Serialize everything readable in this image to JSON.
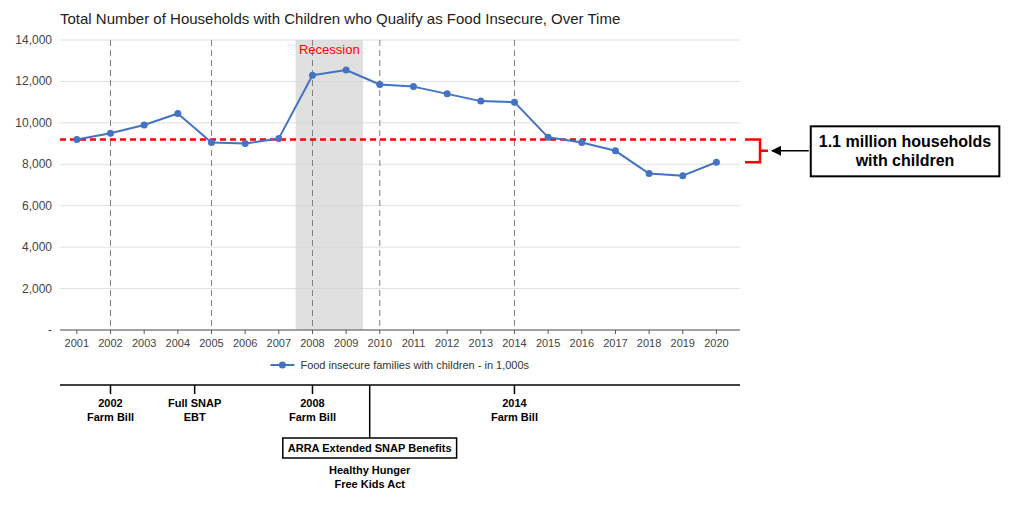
{
  "chart_data": {
    "type": "line",
    "title": "Total Number of Households with Children who Qualify as Food Insecure, Over Time",
    "x": [
      2001,
      2002,
      2003,
      2004,
      2005,
      2006,
      2007,
      2008,
      2009,
      2010,
      2011,
      2012,
      2013,
      2014,
      2015,
      2016,
      2017,
      2018,
      2019,
      2020
    ],
    "series": [
      {
        "name": "Food insecure families with children - in 1,000s",
        "color": "#4472C4",
        "marker": "circle",
        "values": [
          9200,
          9500,
          9900,
          10450,
          9050,
          9000,
          9250,
          12300,
          12550,
          11850,
          11750,
          11400,
          11050,
          11000,
          9300,
          9050,
          8650,
          7550,
          7450,
          8100
        ]
      }
    ],
    "xlim": [
      2000.5,
      2020.7
    ],
    "xticks": [
      2001,
      2002,
      2003,
      2004,
      2005,
      2006,
      2007,
      2008,
      2009,
      2010,
      2011,
      2012,
      2013,
      2014,
      2015,
      2016,
      2017,
      2018,
      2019,
      2020
    ],
    "ylim": [
      0,
      14000
    ],
    "yticks": [
      {
        "value": 0,
        "label": "-"
      },
      {
        "value": 2000,
        "label": "2,000"
      },
      {
        "value": 4000,
        "label": "4,000"
      },
      {
        "value": 6000,
        "label": "6,000"
      },
      {
        "value": 8000,
        "label": "8,000"
      },
      {
        "value": 10000,
        "label": "10,000"
      },
      {
        "value": 12000,
        "label": "12,000"
      },
      {
        "value": 14000,
        "label": "14,000"
      }
    ],
    "grid": true,
    "legend": "bottom",
    "reference_lines": [
      {
        "value": 9200,
        "color": "#FF0000",
        "line_style": "dashed"
      }
    ],
    "vlines": {
      "values": [
        2002,
        2005,
        2008,
        2010,
        2014
      ],
      "color": "#808080",
      "line_style": "dashed"
    },
    "shaded_ranges": [
      {
        "start": 2007.5,
        "end": 2009.5,
        "color": "#D3D3D3",
        "label": "Recession",
        "label_color": "#FF0000"
      }
    ],
    "timeline": [
      {
        "x": 2002,
        "lines": [
          "2002",
          "Farm Bill"
        ]
      },
      {
        "x": 2004.5,
        "lines": [
          "Full SNAP",
          "EBT"
        ]
      },
      {
        "x": 2008,
        "lines": [
          "2008",
          "Farm Bill"
        ]
      },
      {
        "x": 2009.7,
        "lines": [
          "ARRA Extended SNAP Benefits"
        ],
        "boxed": true,
        "below": [
          "Healthy Hunger",
          "Free Kids Act"
        ]
      },
      {
        "x": 2014,
        "lines": [
          "2014",
          "Farm Bill"
        ]
      }
    ],
    "annotation": {
      "lines": [
        "1.1 million households",
        "with children"
      ],
      "color": "#FF0000"
    }
  }
}
